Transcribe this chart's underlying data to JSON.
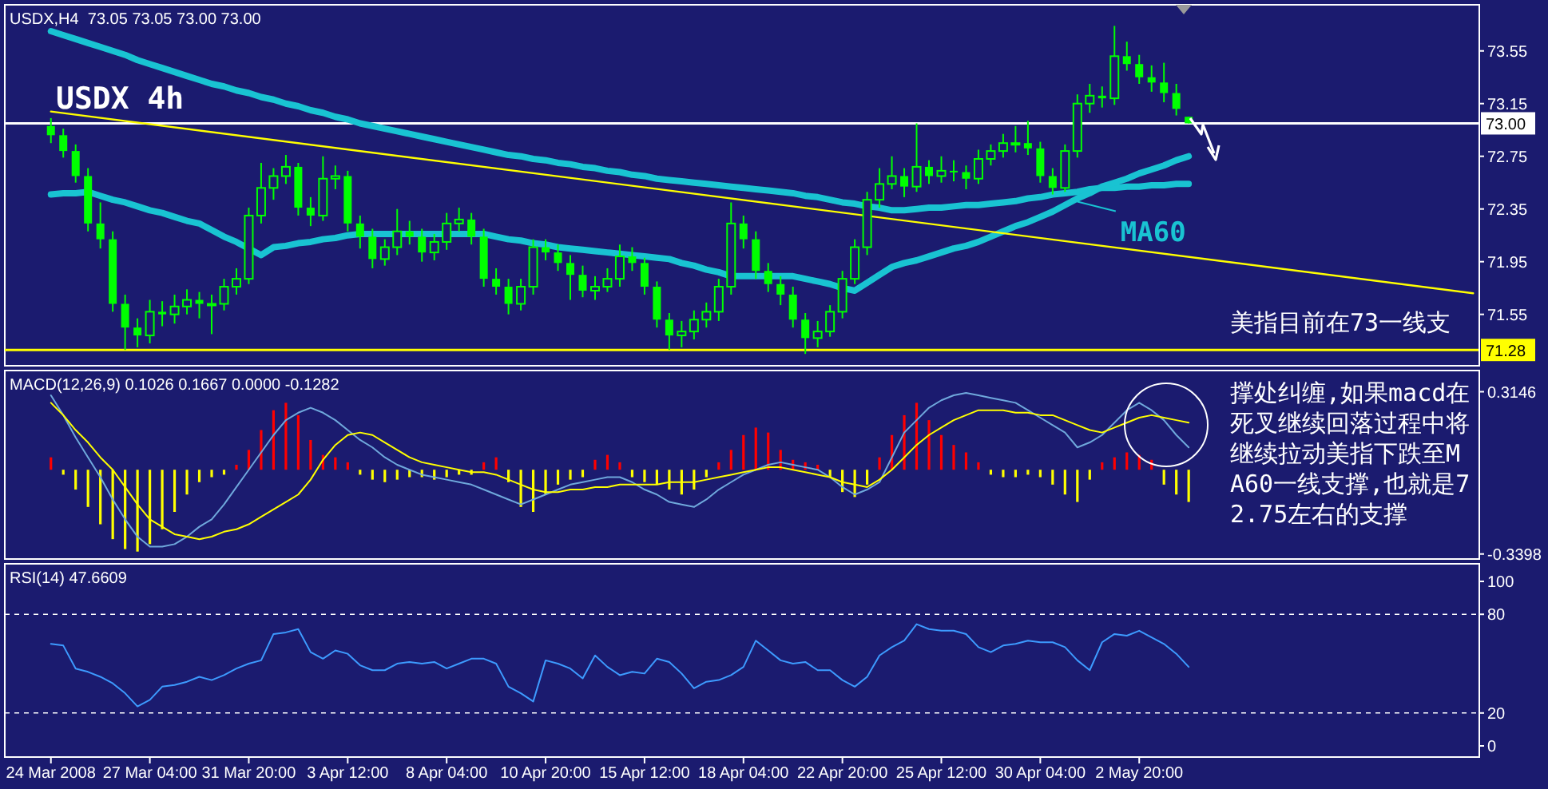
{
  "chart_data": [
    {
      "type": "candlestick",
      "title": "USDX,H4  73.05 73.05 73.00 73.00",
      "color": "#00ff00",
      "ohlc": [
        [
          72.98,
          73.04,
          72.85,
          72.91
        ],
        [
          72.91,
          72.96,
          72.74,
          72.79
        ],
        [
          72.79,
          72.84,
          72.55,
          72.6
        ],
        [
          72.6,
          72.66,
          72.18,
          72.24
        ],
        [
          72.24,
          72.4,
          72.05,
          72.12
        ],
        [
          72.12,
          72.18,
          71.57,
          71.63
        ],
        [
          71.63,
          71.7,
          71.28,
          71.45
        ],
        [
          71.45,
          71.52,
          71.3,
          71.39
        ],
        [
          71.39,
          71.66,
          71.33,
          71.57
        ],
        [
          71.57,
          71.65,
          71.46,
          71.55
        ],
        [
          71.55,
          71.7,
          71.48,
          71.61
        ],
        [
          71.61,
          71.74,
          71.55,
          71.66
        ],
        [
          71.66,
          71.72,
          71.52,
          71.63
        ],
        [
          71.63,
          71.7,
          71.4,
          71.63
        ],
        [
          71.63,
          71.82,
          71.58,
          71.76
        ],
        [
          71.76,
          71.9,
          71.7,
          71.82
        ],
        [
          71.82,
          72.36,
          71.78,
          72.3
        ],
        [
          72.3,
          72.7,
          72.24,
          72.51
        ],
        [
          72.51,
          72.66,
          72.42,
          72.6
        ],
        [
          72.6,
          72.76,
          72.54,
          72.67
        ],
        [
          72.67,
          72.7,
          72.3,
          72.36
        ],
        [
          72.36,
          72.44,
          72.22,
          72.3
        ],
        [
          72.3,
          72.75,
          72.26,
          72.58
        ],
        [
          72.58,
          72.68,
          72.5,
          72.6
        ],
        [
          72.6,
          72.64,
          72.18,
          72.24
        ],
        [
          72.24,
          72.3,
          72.05,
          72.14
        ],
        [
          72.14,
          72.2,
          71.9,
          71.97
        ],
        [
          71.97,
          72.12,
          71.92,
          72.06
        ],
        [
          72.06,
          72.35,
          72,
          72.18
        ],
        [
          72.18,
          72.26,
          72.08,
          72.14
        ],
        [
          72.14,
          72.2,
          71.95,
          72.02
        ],
        [
          72.02,
          72.16,
          71.96,
          72.1
        ],
        [
          72.1,
          72.32,
          72.04,
          72.24
        ],
        [
          72.24,
          72.36,
          72.18,
          72.27
        ],
        [
          72.27,
          72.32,
          72.08,
          72.14
        ],
        [
          72.14,
          72.2,
          71.76,
          71.82
        ],
        [
          71.82,
          71.9,
          71.7,
          71.76
        ],
        [
          71.76,
          71.82,
          71.55,
          71.63
        ],
        [
          71.63,
          71.82,
          71.58,
          71.76
        ],
        [
          71.76,
          72.12,
          71.7,
          72.06
        ],
        [
          72.06,
          72.12,
          71.96,
          72.02
        ],
        [
          72.02,
          72.08,
          71.88,
          71.94
        ],
        [
          71.94,
          72,
          71.66,
          71.85
        ],
        [
          71.85,
          71.92,
          71.68,
          71.73
        ],
        [
          71.73,
          71.84,
          71.66,
          71.76
        ],
        [
          71.76,
          71.9,
          71.72,
          71.82
        ],
        [
          71.82,
          72.08,
          71.76,
          71.99
        ],
        [
          71.99,
          72.06,
          71.88,
          71.94
        ],
        [
          71.94,
          71.98,
          71.7,
          71.76
        ],
        [
          71.76,
          71.8,
          71.45,
          71.51
        ],
        [
          71.51,
          71.56,
          71.28,
          71.39
        ],
        [
          71.39,
          71.5,
          71.3,
          71.42
        ],
        [
          71.42,
          71.58,
          71.36,
          71.51
        ],
        [
          71.51,
          71.64,
          71.45,
          71.57
        ],
        [
          71.57,
          71.82,
          71.5,
          71.76
        ],
        [
          71.76,
          72.4,
          71.7,
          72.24
        ],
        [
          72.24,
          72.3,
          72.05,
          72.12
        ],
        [
          72.12,
          72.18,
          71.82,
          71.88
        ],
        [
          71.88,
          71.94,
          71.72,
          71.78
        ],
        [
          71.78,
          71.84,
          71.62,
          71.7
        ],
        [
          71.7,
          71.76,
          71.45,
          71.51
        ],
        [
          71.51,
          71.56,
          71.25,
          71.37
        ],
        [
          71.37,
          71.5,
          71.3,
          71.42
        ],
        [
          71.42,
          71.62,
          71.38,
          71.57
        ],
        [
          71.57,
          71.88,
          71.52,
          71.82
        ],
        [
          71.82,
          72.12,
          71.78,
          72.06
        ],
        [
          72.06,
          72.48,
          72,
          72.42
        ],
        [
          72.42,
          72.66,
          72.36,
          72.54
        ],
        [
          72.54,
          72.75,
          72.5,
          72.6
        ],
        [
          72.6,
          72.66,
          72.44,
          72.52
        ],
        [
          72.52,
          73,
          72.48,
          72.67
        ],
        [
          72.67,
          72.72,
          72.54,
          72.6
        ],
        [
          72.6,
          72.75,
          72.55,
          72.64
        ],
        [
          72.64,
          72.72,
          72.56,
          72.63
        ],
        [
          72.63,
          72.68,
          72.5,
          72.58
        ],
        [
          72.58,
          72.8,
          72.54,
          72.73
        ],
        [
          72.73,
          72.84,
          72.68,
          72.79
        ],
        [
          72.79,
          72.92,
          72.74,
          72.85
        ],
        [
          72.85,
          72.98,
          72.78,
          72.85
        ],
        [
          72.85,
          73.02,
          72.76,
          72.81
        ],
        [
          72.81,
          72.86,
          72.55,
          72.6
        ],
        [
          72.6,
          72.66,
          72.46,
          72.51
        ],
        [
          72.51,
          72.84,
          72.48,
          72.79
        ],
        [
          72.79,
          73.22,
          72.74,
          73.15
        ],
        [
          73.15,
          73.3,
          73.08,
          73.21
        ],
        [
          73.21,
          73.28,
          73.12,
          73.19
        ],
        [
          73.19,
          73.74,
          73.14,
          73.51
        ],
        [
          73.51,
          73.62,
          73.4,
          73.45
        ],
        [
          73.45,
          73.52,
          73.3,
          73.35
        ],
        [
          73.35,
          73.44,
          73.24,
          73.31
        ],
        [
          73.31,
          73.46,
          73.16,
          73.23
        ],
        [
          73.23,
          73.3,
          73.06,
          73.11
        ],
        [
          73.05,
          73.05,
          73,
          73
        ],
        null,
        null,
        null,
        null,
        null,
        null,
        null,
        null,
        null,
        null,
        null,
        null,
        null,
        null,
        null,
        null,
        null,
        null,
        null,
        null,
        null,
        null,
        null
      ],
      "series": [
        {
          "type": "line",
          "color": "#19c3d2",
          "values": [
            73.7,
            73.67,
            73.64,
            73.61,
            73.58,
            73.55,
            73.52,
            73.48,
            73.45,
            73.42,
            73.39,
            73.36,
            73.33,
            73.3,
            73.28,
            73.25,
            73.23,
            73.2,
            73.18,
            73.15,
            73.13,
            73.1,
            73.08,
            73.05,
            73.03,
            73,
            72.98,
            72.96,
            72.94,
            72.92,
            72.9,
            72.88,
            72.86,
            72.84,
            72.82,
            72.8,
            72.78,
            72.76,
            72.75,
            72.73,
            72.72,
            72.7,
            72.69,
            72.67,
            72.66,
            72.64,
            72.63,
            72.61,
            72.6,
            72.58,
            72.57,
            72.56,
            72.55,
            72.54,
            72.53,
            72.52,
            72.51,
            72.5,
            72.49,
            72.48,
            72.47,
            72.45,
            72.44,
            72.42,
            72.4,
            72.39,
            72.37,
            72.36,
            72.34,
            72.34,
            72.35,
            72.36,
            72.36,
            72.37,
            72.38,
            72.38,
            72.39,
            72.4,
            72.41,
            72.43,
            72.44,
            72.46,
            72.47,
            72.48,
            72.5,
            72.51,
            72.51,
            72.52,
            72.52,
            72.53,
            72.53,
            72.54,
            72.54,
            null,
            null,
            null,
            null,
            null,
            null,
            null,
            null,
            null,
            null,
            null,
            null,
            null,
            null,
            null,
            null,
            null,
            null,
            null,
            null,
            null,
            null,
            null
          ]
        },
        {
          "type": "line",
          "name": "MA60",
          "color": "#19c3d2",
          "values": [
            72.46,
            72.47,
            72.47,
            72.48,
            72.45,
            72.42,
            72.4,
            72.37,
            72.34,
            72.32,
            72.29,
            72.26,
            72.24,
            72.19,
            72.14,
            72.1,
            72.05,
            72,
            72.06,
            72.07,
            72.09,
            72.1,
            72.12,
            72.13,
            72.15,
            72.16,
            72.16,
            72.16,
            72.16,
            72.16,
            72.16,
            72.16,
            72.16,
            72.16,
            72.16,
            72.16,
            72.14,
            72.12,
            72.11,
            72.09,
            72.08,
            72.06,
            72.05,
            72.04,
            72.03,
            72.02,
            72.01,
            72,
            71.99,
            71.98,
            71.97,
            71.94,
            71.92,
            71.89,
            71.87,
            71.84,
            71.84,
            71.84,
            71.84,
            71.84,
            71.84,
            71.82,
            71.8,
            71.78,
            71.75,
            71.73,
            71.79,
            71.85,
            71.91,
            71.94,
            71.96,
            71.99,
            72.02,
            72.05,
            72.07,
            72.1,
            72.14,
            72.18,
            72.22,
            72.25,
            72.29,
            72.33,
            72.38,
            72.43,
            72.47,
            72.52,
            72.55,
            72.58,
            72.62,
            72.65,
            72.68,
            72.72,
            72.75,
            null,
            null,
            null,
            null,
            null,
            null,
            null,
            null,
            null,
            null,
            null,
            null,
            null,
            null,
            null,
            null,
            null,
            null,
            null,
            null,
            null,
            null,
            null
          ]
        },
        {
          "type": "line",
          "color": "#ffff00",
          "values": [
            73.09,
            null,
            null,
            null,
            null,
            null,
            null,
            null,
            null,
            null,
            null,
            null,
            null,
            null,
            null,
            null,
            null,
            null,
            null,
            null,
            null,
            null,
            null,
            null,
            null,
            null,
            null,
            null,
            null,
            null,
            null,
            null,
            null,
            null,
            null,
            null,
            null,
            null,
            null,
            null,
            null,
            null,
            null,
            null,
            null,
            null,
            null,
            null,
            null,
            null,
            null,
            null,
            null,
            null,
            null,
            null,
            null,
            null,
            null,
            null,
            null,
            null,
            null,
            null,
            null,
            null,
            null,
            null,
            null,
            null,
            null,
            null,
            null,
            null,
            null,
            null,
            null,
            null,
            null,
            null,
            null,
            null,
            null,
            null,
            null,
            null,
            null,
            null,
            null,
            null,
            null,
            null,
            null,
            null,
            null,
            null,
            null,
            null,
            null,
            null,
            null,
            null,
            null,
            null,
            null,
            null,
            null,
            null,
            null,
            null,
            null,
            null,
            null,
            null,
            null,
            71.71
          ]
        }
      ],
      "ylim": [
        71.16,
        73.9
      ],
      "yticks": [
        73.55,
        73.15,
        72.75,
        72.35,
        71.95,
        71.55
      ],
      "tick_labels": "y",
      "ref_lines": [
        {
          "axis": "y",
          "value": 73,
          "label": "73.00",
          "color": "#ffffff"
        },
        {
          "axis": "y",
          "value": 71.28,
          "label": "71.28",
          "color": "#ffff00"
        }
      ],
      "annotations": [
        "USDX 4h",
        "美指目前在73一线支撑处纠缠,如果macd在死叉继续回落过程中将继续拉动美指下跌至MA60一线支撑,也就是72.75左右的支撑"
      ]
    },
    {
      "type": "bar",
      "title": "MACD(12,26,9) 0.1026 0.1667 0.0000 -0.1282",
      "series": [
        {
          "color": "#ff0000",
          "values": [
            0.05,
            null,
            null,
            null,
            null,
            null,
            null,
            null,
            null,
            null,
            null,
            null,
            null,
            null,
            null,
            0.02,
            0.08,
            0.16,
            0.24,
            0.27,
            0.22,
            0.12,
            0.06,
            0.05,
            0.03,
            null,
            null,
            null,
            null,
            null,
            null,
            null,
            null,
            null,
            null,
            0.03,
            0.05,
            null,
            null,
            null,
            null,
            null,
            null,
            null,
            0.04,
            0.06,
            0.03,
            null,
            null,
            null,
            null,
            null,
            null,
            null,
            0.03,
            0.08,
            0.14,
            0.17,
            0.15,
            0.08,
            0.04,
            0.03,
            0.02,
            null,
            null,
            null,
            null,
            0.05,
            0.14,
            0.22,
            0.27,
            0.2,
            0.14,
            0.1,
            0.07,
            0.03,
            null,
            null,
            null,
            null,
            null,
            null,
            null,
            null,
            null,
            0.03,
            0.05,
            0.07,
            0.06,
            0.04,
            null,
            null,
            null,
            null,
            null,
            null,
            null,
            null,
            null,
            null,
            null,
            null,
            null,
            null,
            null,
            null,
            null,
            null,
            null,
            null,
            null,
            null,
            null,
            null,
            null,
            null
          ]
        },
        {
          "color": "#ffff00",
          "values": [
            null,
            -0.02,
            -0.08,
            -0.15,
            -0.22,
            -0.28,
            -0.32,
            -0.33,
            -0.3,
            -0.24,
            -0.17,
            -0.1,
            -0.05,
            -0.03,
            -0.02,
            null,
            null,
            null,
            null,
            null,
            null,
            null,
            null,
            null,
            null,
            -0.02,
            -0.04,
            -0.05,
            -0.04,
            -0.03,
            -0.03,
            -0.04,
            -0.03,
            -0.02,
            -0.02,
            null,
            null,
            -0.05,
            -0.15,
            -0.17,
            -0.1,
            -0.06,
            -0.04,
            -0.03,
            null,
            null,
            null,
            -0.03,
            -0.05,
            -0.06,
            -0.08,
            -0.1,
            -0.08,
            -0.03,
            null,
            null,
            null,
            null,
            null,
            null,
            null,
            null,
            null,
            -0.03,
            -0.09,
            -0.11,
            -0.06,
            null,
            null,
            null,
            null,
            null,
            null,
            null,
            null,
            null,
            -0.02,
            -0.03,
            -0.03,
            -0.02,
            -0.03,
            -0.06,
            -0.1,
            -0.13,
            -0.04,
            null,
            null,
            null,
            null,
            null,
            -0.06,
            -0.1,
            -0.13,
            null,
            null,
            null,
            null,
            null,
            null,
            null,
            null,
            null,
            null,
            null,
            null,
            null,
            null,
            null,
            null,
            null,
            null,
            null,
            null,
            null,
            null,
            null
          ]
        },
        {
          "type": "line",
          "color": "#6fa8dc",
          "values": [
            0.3,
            0.22,
            0.13,
            0.05,
            -0.03,
            -0.12,
            -0.2,
            -0.27,
            -0.31,
            -0.31,
            -0.3,
            -0.27,
            -0.23,
            -0.2,
            -0.14,
            -0.07,
            0,
            0.07,
            0.14,
            0.2,
            0.23,
            0.25,
            0.23,
            0.2,
            0.16,
            0.12,
            0.09,
            0.05,
            0.02,
            0,
            -0.02,
            -0.03,
            -0.04,
            -0.05,
            -0.06,
            -0.08,
            -0.1,
            -0.12,
            -0.14,
            -0.12,
            -0.1,
            -0.08,
            -0.06,
            -0.05,
            -0.04,
            -0.03,
            -0.03,
            -0.05,
            -0.08,
            -0.1,
            -0.13,
            -0.14,
            -0.15,
            -0.12,
            -0.08,
            -0.05,
            -0.02,
            0,
            0.02,
            0.03,
            0.02,
            0.01,
            0,
            -0.03,
            -0.07,
            -0.1,
            -0.08,
            -0.05,
            0.05,
            0.15,
            0.2,
            0.25,
            0.28,
            0.3,
            0.31,
            0.3,
            0.29,
            0.28,
            0.27,
            0.24,
            0.21,
            0.18,
            0.15,
            0.09,
            0.11,
            0.14,
            0.19,
            0.24,
            0.27,
            0.24,
            0.2,
            0.14,
            0.09,
            null,
            null,
            null,
            null,
            null,
            null,
            null,
            null,
            null,
            null,
            null,
            null,
            null,
            null,
            null,
            null,
            null,
            null,
            null,
            null,
            null,
            null,
            null
          ]
        },
        {
          "type": "line",
          "color": "#ffff00",
          "values": [
            0.27,
            0.22,
            0.16,
            0.11,
            0.05,
            0,
            -0.07,
            -0.14,
            -0.2,
            -0.23,
            -0.26,
            -0.27,
            -0.28,
            -0.27,
            -0.25,
            -0.24,
            -0.22,
            -0.19,
            -0.16,
            -0.13,
            -0.1,
            -0.04,
            0.04,
            0.1,
            0.14,
            0.15,
            0.14,
            0.11,
            0.08,
            0.05,
            0.03,
            0.02,
            0.01,
            0,
            -0.01,
            -0.01,
            -0.02,
            -0.04,
            -0.06,
            -0.08,
            -0.09,
            -0.09,
            -0.08,
            -0.08,
            -0.07,
            -0.07,
            -0.06,
            -0.06,
            -0.06,
            -0.06,
            -0.05,
            -0.05,
            -0.05,
            -0.04,
            -0.03,
            -0.02,
            -0.01,
            0,
            0.01,
            0.01,
            0,
            -0.01,
            -0.02,
            -0.03,
            -0.05,
            -0.06,
            -0.07,
            -0.04,
            0,
            0.05,
            0.1,
            0.14,
            0.17,
            0.2,
            0.22,
            0.24,
            0.24,
            0.24,
            0.23,
            0.23,
            0.22,
            0.22,
            0.2,
            0.18,
            0.16,
            0.15,
            0.17,
            0.19,
            0.21,
            0.22,
            0.21,
            0.2,
            0.19,
            null,
            null,
            null,
            null,
            null,
            null,
            null,
            null,
            null,
            null,
            null,
            null,
            null,
            null,
            null,
            null,
            null,
            null,
            null,
            null,
            null,
            null,
            null
          ]
        }
      ],
      "ylim": [
        -0.36,
        0.4
      ],
      "yticks": [
        0.3146,
        -0.3398
      ],
      "tick_labels": "y"
    },
    {
      "type": "line",
      "title": "RSI(14) 47.6609",
      "categories": [
        "24 Mar 2008",
        null,
        null,
        null,
        null,
        null,
        null,
        null,
        "27 Mar 04:00",
        null,
        null,
        null,
        null,
        null,
        null,
        null,
        "31 Mar 20:00",
        null,
        null,
        null,
        null,
        null,
        null,
        null,
        "3 Apr 12:00",
        null,
        null,
        null,
        null,
        null,
        null,
        null,
        "8 Apr 04:00",
        null,
        null,
        null,
        null,
        null,
        null,
        null,
        "10 Apr 20:00",
        null,
        null,
        null,
        null,
        null,
        null,
        null,
        "15 Apr 12:00",
        null,
        null,
        null,
        null,
        null,
        null,
        null,
        "18 Apr 04:00",
        null,
        null,
        null,
        null,
        null,
        null,
        null,
        "22 Apr 20:00",
        null,
        null,
        null,
        null,
        null,
        null,
        null,
        "25 Apr 12:00",
        null,
        null,
        null,
        null,
        null,
        null,
        null,
        "30 Apr 04:00",
        null,
        null,
        null,
        null,
        null,
        null,
        null,
        "2 May 20:00",
        null,
        null,
        null,
        null,
        null,
        null,
        null,
        null,
        null,
        null,
        null,
        null,
        null,
        null,
        null,
        null,
        null,
        null,
        null,
        null,
        null,
        null,
        null,
        null,
        null,
        null,
        null
      ],
      "series": [
        {
          "color": "#3d9bff",
          "values": [
            62,
            61,
            47,
            45,
            42,
            38,
            32,
            24,
            28,
            36,
            37,
            39,
            42,
            40,
            43,
            47,
            50,
            52,
            68,
            69,
            71,
            57,
            53,
            58,
            56,
            49,
            46,
            46,
            50,
            51,
            50,
            51,
            47,
            50,
            53,
            53,
            50,
            36,
            32,
            27,
            52,
            50,
            47,
            41,
            55,
            48,
            43,
            45,
            44,
            53,
            51,
            44,
            35,
            39,
            40,
            43,
            48,
            64,
            58,
            52,
            50,
            51,
            46,
            46,
            40,
            36,
            42,
            55,
            60,
            64,
            74,
            71,
            70,
            70,
            68,
            60,
            57,
            61,
            62,
            64,
            63,
            63,
            60,
            52,
            46,
            63,
            68,
            67,
            70,
            66,
            62,
            56,
            48,
            null,
            null,
            null,
            null,
            null,
            null,
            null,
            null,
            null,
            null,
            null,
            null,
            null,
            null,
            null,
            null,
            null,
            null,
            null,
            null,
            null,
            null,
            null
          ]
        }
      ],
      "ylim": [
        -6.8,
        110.7
      ],
      "yticks": [
        100,
        80,
        20,
        0
      ],
      "ref_lines": [
        {
          "axis": "y",
          "value": 80,
          "line_style": "dashed",
          "color": "#ffffff"
        },
        {
          "axis": "y",
          "value": 20,
          "line_style": "dashed",
          "color": "#ffffff"
        }
      ]
    }
  ]
}
